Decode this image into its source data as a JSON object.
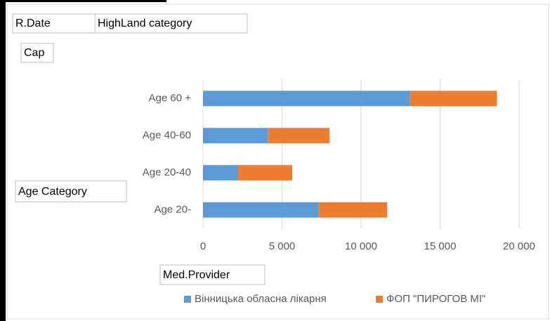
{
  "chart_data": {
    "type": "bar",
    "orientation": "horizontal",
    "stacked": true,
    "filter_fields": [
      "R.Date",
      "HighLand category"
    ],
    "value_field": "Cap",
    "axis_field": "Age Category",
    "legend_field": "Med.Provider",
    "categories": [
      "Age 60 +",
      "Age 40-60",
      "Age 20-40",
      "Age 20-"
    ],
    "series": [
      {
        "name": "Вінницька обласна лікарня",
        "color": "#5b9bd5",
        "values": [
          13100,
          4100,
          2200,
          7300
        ]
      },
      {
        "name": "ФОП \"ПИРОГОВ МІ\"",
        "color": "#ed7d31",
        "values": [
          5500,
          3900,
          3450,
          4350
        ]
      }
    ],
    "xlim": [
      0,
      20000
    ],
    "xticks": [
      0,
      {
        "value": 5000,
        "label": "5 000"
      },
      {
        "value": 10000,
        "label": "10 000"
      },
      {
        "value": 15000,
        "label": "15 000"
      },
      {
        "value": 20000,
        "label": "20 000"
      }
    ],
    "grid": true,
    "legend": "bottom"
  }
}
